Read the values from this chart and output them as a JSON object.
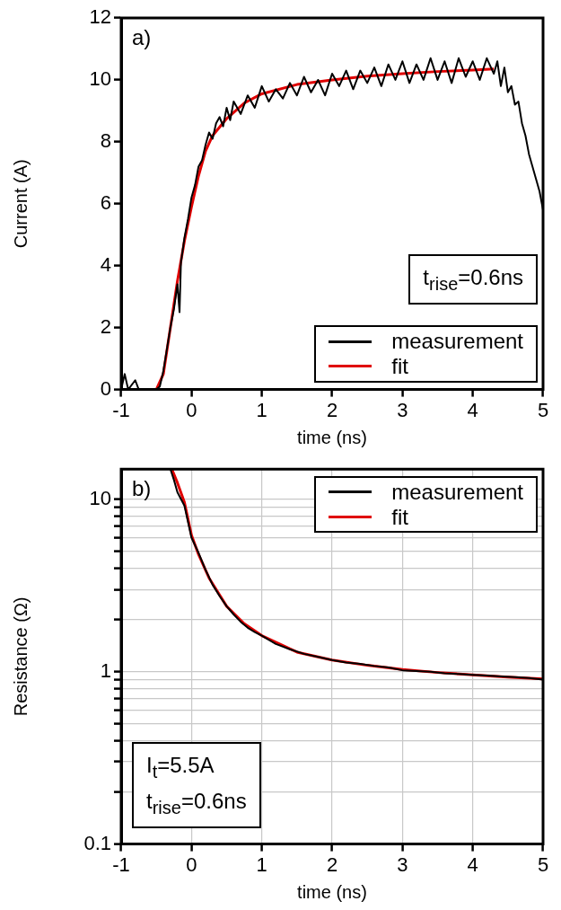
{
  "chart_data": [
    {
      "type": "line",
      "title": "a)",
      "xlabel": "time (ns)",
      "ylabel": "Current (A)",
      "xlim": [
        -1,
        5
      ],
      "xticks": [
        -1,
        0,
        1,
        2,
        3,
        4,
        5
      ],
      "ylim": [
        0,
        12
      ],
      "yticks": [
        0,
        2,
        4,
        6,
        8,
        10,
        12
      ],
      "grid": false,
      "legend": "bottom right",
      "marker": "none",
      "line_style": "solid",
      "annotations": [
        "t$_{rise}$=0.6ns"
      ],
      "series": [
        {
          "name": "measurement",
          "color": "#000000",
          "x": [
            -1,
            -0.95,
            -0.9,
            -0.8,
            -0.75,
            -0.6,
            -0.5,
            -0.45,
            -0.4,
            -0.35,
            -0.3,
            -0.25,
            -0.2,
            -0.17,
            -0.15,
            -0.1,
            -0.05,
            0,
            0.05,
            0.1,
            0.15,
            0.2,
            0.25,
            0.3,
            0.35,
            0.4,
            0.45,
            0.5,
            0.55,
            0.6,
            0.7,
            0.8,
            0.9,
            1.0,
            1.1,
            1.2,
            1.3,
            1.4,
            1.5,
            1.6,
            1.7,
            1.8,
            1.9,
            2.0,
            2.1,
            2.2,
            2.3,
            2.4,
            2.5,
            2.6,
            2.7,
            2.8,
            2.9,
            3.0,
            3.1,
            3.2,
            3.3,
            3.4,
            3.5,
            3.6,
            3.7,
            3.8,
            3.9,
            4.0,
            4.1,
            4.2,
            4.3,
            4.35,
            4.4,
            4.45,
            4.5,
            4.55,
            4.6,
            4.65,
            4.7,
            4.75,
            4.8,
            4.85,
            4.9,
            4.95,
            5.0
          ],
          "values": [
            0,
            0.5,
            0,
            0.3,
            0,
            0,
            0,
            0.1,
            0.6,
            1.3,
            2.0,
            2.6,
            3.4,
            2.5,
            4.1,
            4.9,
            5.5,
            6.2,
            6.6,
            7.2,
            7.4,
            7.9,
            8.3,
            8.1,
            8.6,
            8.8,
            8.5,
            9.1,
            8.7,
            9.3,
            8.9,
            9.5,
            9.1,
            9.8,
            9.3,
            9.7,
            9.4,
            9.9,
            9.5,
            10.1,
            9.6,
            10.0,
            9.5,
            10.2,
            9.8,
            10.3,
            9.7,
            10.3,
            9.9,
            10.4,
            9.8,
            10.5,
            10.0,
            10.6,
            9.9,
            10.5,
            10.0,
            10.7,
            10.0,
            10.6,
            9.9,
            10.7,
            10.1,
            10.6,
            10.0,
            10.7,
            10.2,
            10.6,
            9.8,
            10.4,
            9.6,
            9.8,
            9.2,
            9.3,
            8.6,
            8.2,
            7.6,
            7.2,
            6.8,
            6.4,
            5.8
          ]
        },
        {
          "name": "fit",
          "color": "#e00000",
          "x": [
            -1,
            -0.5,
            -0.4,
            -0.3,
            -0.2,
            -0.1,
            0,
            0.1,
            0.2,
            0.3,
            0.5,
            0.75,
            1,
            1.5,
            2,
            2.5,
            3,
            3.5,
            4,
            4.3
          ],
          "values": [
            0,
            0,
            0.5,
            2.0,
            3.5,
            4.8,
            5.9,
            6.9,
            7.7,
            8.2,
            8.75,
            9.25,
            9.55,
            9.85,
            10.0,
            10.12,
            10.2,
            10.27,
            10.32,
            10.35
          ]
        }
      ]
    },
    {
      "type": "line",
      "title": "b)",
      "xlabel": "time (ns)",
      "ylabel": "Resistance (Ω)",
      "log": "y",
      "xlim": [
        -1,
        5
      ],
      "xticks": [
        -1,
        0,
        1,
        2,
        3,
        4,
        5
      ],
      "ylim": [
        0.1,
        15
      ],
      "yticks": [
        0.1,
        {
          "value": 0.2,
          "label": null
        },
        {
          "value": 0.3,
          "label": null
        },
        {
          "value": 0.4,
          "label": null
        },
        {
          "value": 0.5,
          "label": null
        },
        {
          "value": 0.6,
          "label": null
        },
        {
          "value": 0.7,
          "label": null
        },
        {
          "value": 0.8,
          "label": null
        },
        {
          "value": 0.9,
          "label": null
        },
        1,
        {
          "value": 2,
          "label": null
        },
        {
          "value": 3,
          "label": null
        },
        {
          "value": 4,
          "label": null
        },
        {
          "value": 5,
          "label": null
        },
        {
          "value": 6,
          "label": null
        },
        {
          "value": 7,
          "label": null
        },
        {
          "value": 8,
          "label": null
        },
        {
          "value": 9,
          "label": null
        },
        10
      ],
      "grid": true,
      "legend": "top right",
      "marker": "none",
      "line_style": "solid",
      "annotations": [
        "I$_{t}$=5.5A",
        "t$_{rise}$=0.6ns"
      ],
      "series": [
        {
          "name": "measurement",
          "color": "#000000",
          "x": [
            -0.3,
            -0.25,
            -0.2,
            -0.1,
            0,
            0.1,
            0.2,
            0.3,
            0.4,
            0.5,
            0.6,
            0.7,
            0.8,
            0.9,
            1.0,
            1.2,
            1.4,
            1.6,
            1.8,
            2.0,
            2.2,
            2.4,
            2.6,
            2.8,
            3.0,
            3.2,
            3.4,
            3.6,
            3.8,
            4.0,
            4.2,
            4.4,
            4.6,
            4.8,
            5.0
          ],
          "values": [
            15,
            13,
            11,
            9.2,
            6.0,
            4.9,
            3.9,
            3.2,
            2.75,
            2.4,
            2.15,
            1.95,
            1.8,
            1.7,
            1.62,
            1.45,
            1.35,
            1.27,
            1.22,
            1.17,
            1.13,
            1.11,
            1.08,
            1.06,
            1.02,
            1.01,
            1.0,
            0.98,
            0.97,
            0.96,
            0.95,
            0.94,
            0.93,
            0.92,
            0.9
          ]
        },
        {
          "name": "fit",
          "color": "#e00000",
          "x": [
            -0.28,
            -0.2,
            -0.1,
            0,
            0.1,
            0.25,
            0.5,
            0.75,
            1,
            1.5,
            2,
            2.5,
            3,
            3.5,
            4,
            4.5,
            5
          ],
          "values": [
            15,
            12.5,
            9.6,
            6.2,
            4.8,
            3.5,
            2.4,
            1.9,
            1.62,
            1.3,
            1.17,
            1.09,
            1.03,
            0.99,
            0.96,
            0.93,
            0.91
          ]
        }
      ]
    }
  ]
}
